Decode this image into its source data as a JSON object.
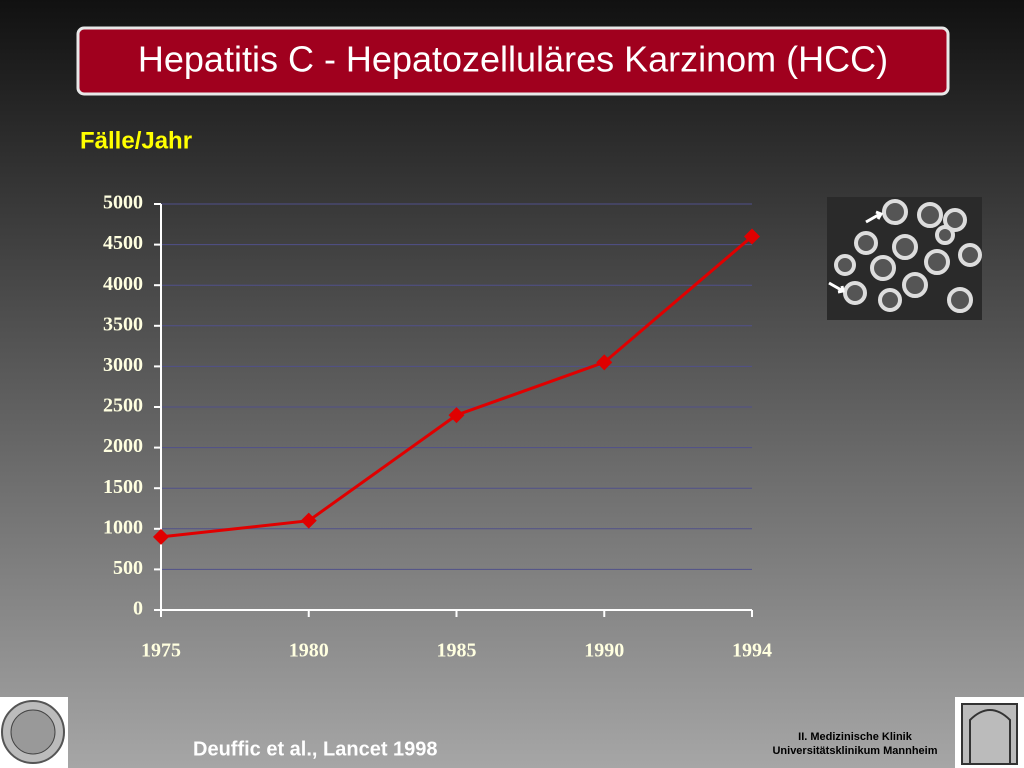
{
  "chart_data": {
    "type": "line",
    "title": "Hepatitis C - Hepatozelluläres Karzinom (HCC)",
    "y_label": "Fälle/Jahr",
    "categories": [
      "1975",
      "1980",
      "1985",
      "1990",
      "1994"
    ],
    "values": [
      900,
      1100,
      2400,
      3050,
      4600
    ],
    "color": "#e00000",
    "ylim": [
      0,
      5000
    ],
    "yticks": [
      0,
      500,
      1000,
      1500,
      2000,
      2500,
      3000,
      3500,
      4000,
      4500,
      5000
    ],
    "grid": true
  },
  "citation": "Deuffic et al., Lancet 1998",
  "footer": {
    "line1": "II. Medizinische Klinik",
    "line2": "Universitätsklinikum Mannheim"
  }
}
